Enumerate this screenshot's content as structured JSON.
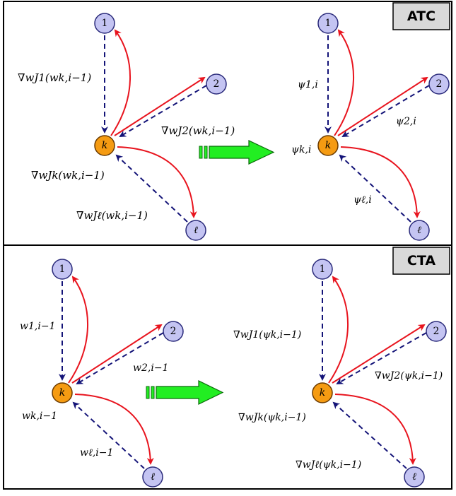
{
  "colors": {
    "frame": "#000000",
    "badge_fill": "#d9d9d9",
    "node_fill": "#c4c4f2",
    "node_stroke": "#2a2a7a",
    "center_fill": "#f59b12",
    "center_stroke": "#6a3a00",
    "red_arrow": "#e8141e",
    "blue_arrow": "#141478",
    "green_fill": "#22ee22",
    "green_stroke": "#0a6a0a"
  },
  "panels": [
    {
      "badge": "ATC",
      "nodes": {
        "n1": "1",
        "n2": "2",
        "k": "k",
        "l": "ℓ"
      },
      "left_labels": {
        "from1": "∇wJ1(wk,i−1)",
        "from2": "∇wJ2(wk,i−1)",
        "self": "∇wJk(wk,i−1)",
        "froml": "∇wJℓ(wk,i−1)"
      },
      "right_labels": {
        "from1": "ψ1,i",
        "from2": "ψ2,i",
        "self": "ψk,i",
        "froml": "ψℓ,i"
      }
    },
    {
      "badge": "CTA",
      "nodes": {
        "n1": "1",
        "n2": "2",
        "k": "k",
        "l": "ℓ"
      },
      "left_labels": {
        "from1": "w1,i−1",
        "from2": "w2,i−1",
        "self": "wk,i−1",
        "froml": "wℓ,i−1"
      },
      "right_labels": {
        "from1": "∇wJ1(ψk,i−1)",
        "from2": "∇wJ2(ψk,i−1)",
        "self": "∇wJk(ψk,i−1)",
        "froml": "∇wJℓ(ψk,i−1)"
      }
    }
  ]
}
